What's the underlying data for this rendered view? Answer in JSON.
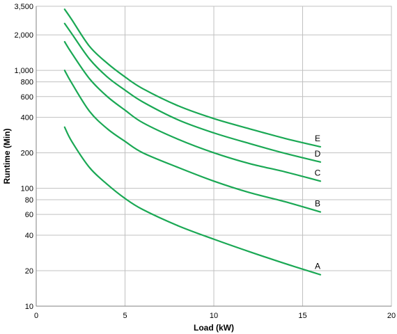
{
  "chart_data": {
    "type": "line",
    "title": "",
    "xlabel": "Load (kW)",
    "ylabel": "Runtime (Min)",
    "xlim": [
      0,
      20
    ],
    "ylim": [
      10,
      3500
    ],
    "yscale": "log",
    "grid": true,
    "line_color": "#1aa854",
    "x_ticks": [
      0,
      5,
      10,
      15,
      20
    ],
    "x_tick_labels": [
      "0",
      "5",
      "10",
      "15",
      "20"
    ],
    "y_ticks": [
      10,
      20,
      40,
      60,
      80,
      100,
      200,
      400,
      600,
      800,
      1000,
      2000,
      3500
    ],
    "y_tick_labels": [
      "10",
      "20",
      "40",
      "60",
      "80",
      "100",
      "200",
      "400",
      "600",
      "800",
      "1,000",
      "2,000",
      "3,500"
    ],
    "series": [
      {
        "name": "A",
        "x": [
          1.6,
          2,
          3,
          4,
          5,
          6,
          8,
          10,
          12,
          14,
          16
        ],
        "values": [
          330,
          250,
          150,
          108,
          82,
          66,
          48,
          37,
          29,
          23,
          18.5
        ]
      },
      {
        "name": "B",
        "x": [
          1.6,
          2,
          3,
          4,
          5,
          6,
          8,
          10,
          12,
          14,
          16
        ],
        "values": [
          1000,
          780,
          450,
          320,
          250,
          200,
          150,
          115,
          92,
          77,
          63
        ]
      },
      {
        "name": "C",
        "x": [
          1.6,
          2,
          3,
          4,
          5,
          6,
          8,
          10,
          12,
          14,
          16
        ],
        "values": [
          1750,
          1400,
          850,
          600,
          460,
          360,
          260,
          200,
          162,
          138,
          115
        ]
      },
      {
        "name": "D",
        "x": [
          1.6,
          2,
          3,
          4,
          5,
          6,
          8,
          10,
          12,
          14,
          16
        ],
        "values": [
          2500,
          2050,
          1250,
          880,
          680,
          540,
          380,
          295,
          240,
          198,
          167
        ]
      },
      {
        "name": "E",
        "x": [
          1.6,
          2,
          3,
          4,
          5,
          6,
          8,
          10,
          12,
          14,
          16
        ],
        "values": [
          3300,
          2700,
          1600,
          1150,
          880,
          700,
          500,
          390,
          320,
          265,
          225
        ]
      }
    ],
    "legend": "inline-labels-at-line-ends"
  }
}
